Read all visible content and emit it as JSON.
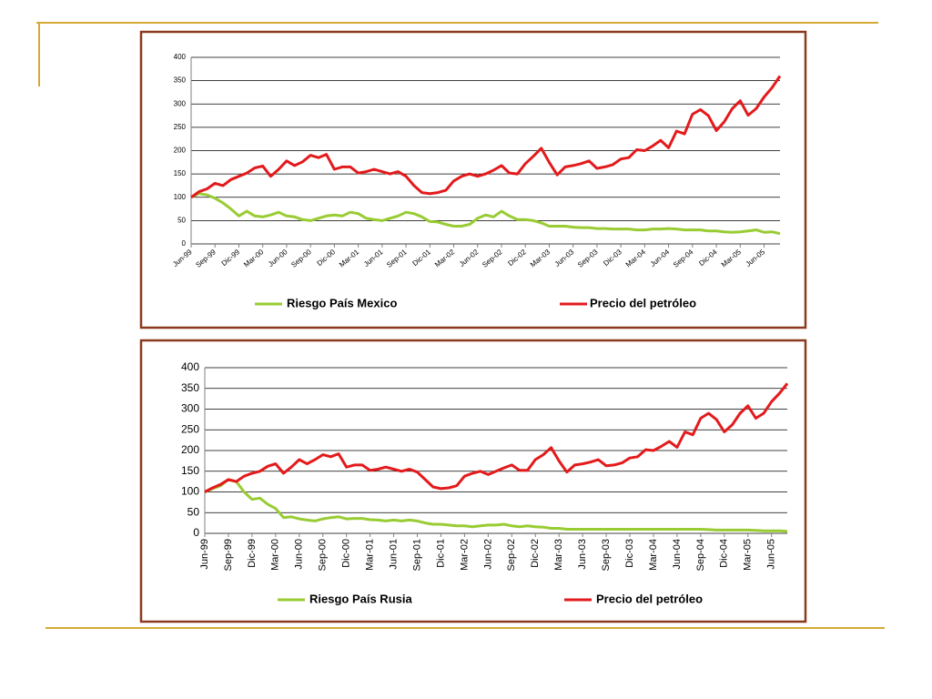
{
  "chart_data": [
    {
      "type": "line",
      "categories": [
        "Jun-99",
        null,
        null,
        "Sep-99",
        null,
        null,
        "Dic-99",
        null,
        null,
        "Mar-00",
        null,
        null,
        "Jun-00",
        null,
        null,
        "Sep-00",
        null,
        null,
        "Dic-00",
        null,
        null,
        "Mar-01",
        null,
        null,
        "Jun-01",
        null,
        null,
        "Sep-01",
        null,
        null,
        "Dic-01",
        null,
        null,
        "Mar-02",
        null,
        null,
        "Jun-02",
        null,
        null,
        "Sep-02",
        null,
        null,
        "Dic-02",
        null,
        null,
        "Mar-03",
        null,
        null,
        "Jun-03",
        null,
        null,
        "Sep-03",
        null,
        null,
        "Dic-03",
        null,
        null,
        "Mar-04",
        null,
        null,
        "Jun-04",
        null,
        null,
        "Sep-04",
        null,
        null,
        "Dic-04",
        null,
        null,
        "Mar-05",
        null,
        null,
        "Jun-05",
        null,
        null
      ],
      "series": [
        {
          "name": "Riesgo País Mexico",
          "color": "#99cc33",
          "values": [
            100,
            108,
            105,
            98,
            88,
            75,
            60,
            70,
            60,
            58,
            62,
            68,
            60,
            58,
            52,
            50,
            55,
            60,
            62,
            60,
            68,
            65,
            55,
            52,
            50,
            55,
            60,
            68,
            65,
            58,
            48,
            47,
            42,
            38,
            38,
            42,
            55,
            62,
            58,
            70,
            60,
            52,
            52,
            50,
            45,
            38,
            38,
            38,
            36,
            35,
            35,
            33,
            33,
            32,
            32,
            32,
            30,
            30,
            32,
            32,
            33,
            32,
            30,
            30,
            30,
            28,
            28,
            26,
            25,
            26,
            28,
            30,
            25,
            26,
            22
          ]
        },
        {
          "name": "Precio del petróleo",
          "color": "#e31a1c",
          "values": [
            100,
            112,
            118,
            130,
            125,
            138,
            145,
            152,
            163,
            167,
            145,
            160,
            178,
            168,
            176,
            190,
            185,
            192,
            160,
            165,
            165,
            152,
            155,
            160,
            155,
            150,
            155,
            145,
            125,
            110,
            108,
            110,
            115,
            135,
            145,
            150,
            145,
            150,
            158,
            168,
            152,
            150,
            172,
            188,
            205,
            175,
            148,
            165,
            168,
            172,
            178,
            162,
            165,
            170,
            182,
            185,
            202,
            200,
            210,
            222,
            206,
            242,
            236,
            278,
            288,
            275,
            243,
            262,
            290,
            307,
            276,
            290,
            315,
            335,
            360
          ]
        }
      ],
      "ylim": [
        0,
        400
      ],
      "yticks": [
        0,
        50,
        100,
        150,
        200,
        250,
        300,
        350,
        400
      ],
      "grid": true
    },
    {
      "type": "line",
      "categories": [
        "Jun-99",
        null,
        null,
        "Sep-99",
        null,
        null,
        "Dic-99",
        null,
        null,
        "Mar-00",
        null,
        null,
        "Jun-00",
        null,
        null,
        "Sep-00",
        null,
        null,
        "Dic-00",
        null,
        null,
        "Mar-01",
        null,
        null,
        "Jun-01",
        null,
        null,
        "Sep-01",
        null,
        null,
        "Dic-01",
        null,
        null,
        "Mar-02",
        null,
        null,
        "Jun-02",
        null,
        null,
        "Sep-02",
        null,
        null,
        "Dic-02",
        null,
        null,
        "Mar-03",
        null,
        null,
        "Jun-03",
        null,
        null,
        "Sep-03",
        null,
        null,
        "Dic-03",
        null,
        null,
        "Mar-04",
        null,
        null,
        "Jun-04",
        null,
        null,
        "Sep-04",
        null,
        null,
        "Dic-04",
        null,
        null,
        "Mar-05",
        null,
        null,
        "Jun-05",
        null,
        null
      ],
      "series": [
        {
          "name": "Riesgo País Rusia",
          "color": "#99cc33",
          "values": [
            100,
            108,
            115,
            130,
            125,
            100,
            82,
            85,
            70,
            60,
            38,
            40,
            35,
            32,
            30,
            35,
            38,
            40,
            35,
            36,
            36,
            33,
            32,
            30,
            32,
            30,
            32,
            30,
            25,
            22,
            22,
            20,
            18,
            18,
            16,
            18,
            20,
            20,
            22,
            18,
            16,
            18,
            16,
            15,
            12,
            12,
            10,
            10,
            10,
            10,
            10,
            10,
            10,
            10,
            10,
            10,
            10,
            10,
            10,
            10,
            10,
            10,
            10,
            10,
            9,
            8,
            8,
            8,
            8,
            8,
            7,
            6,
            6,
            6,
            5
          ]
        },
        {
          "name": "Precio del petróleo",
          "color": "#e31a1c",
          "values": [
            100,
            110,
            118,
            130,
            125,
            138,
            145,
            150,
            162,
            168,
            145,
            160,
            178,
            168,
            178,
            190,
            185,
            192,
            160,
            165,
            165,
            152,
            155,
            160,
            155,
            150,
            155,
            148,
            130,
            112,
            108,
            110,
            115,
            138,
            145,
            150,
            142,
            150,
            158,
            165,
            152,
            152,
            178,
            190,
            207,
            175,
            148,
            165,
            168,
            172,
            178,
            163,
            165,
            170,
            182,
            185,
            202,
            200,
            210,
            222,
            208,
            245,
            238,
            278,
            290,
            275,
            245,
            262,
            290,
            308,
            278,
            290,
            318,
            338,
            362
          ]
        }
      ],
      "ylim": [
        0,
        400
      ],
      "yticks": [
        0,
        50,
        100,
        150,
        200,
        250,
        300,
        350,
        400
      ],
      "grid": true
    }
  ]
}
